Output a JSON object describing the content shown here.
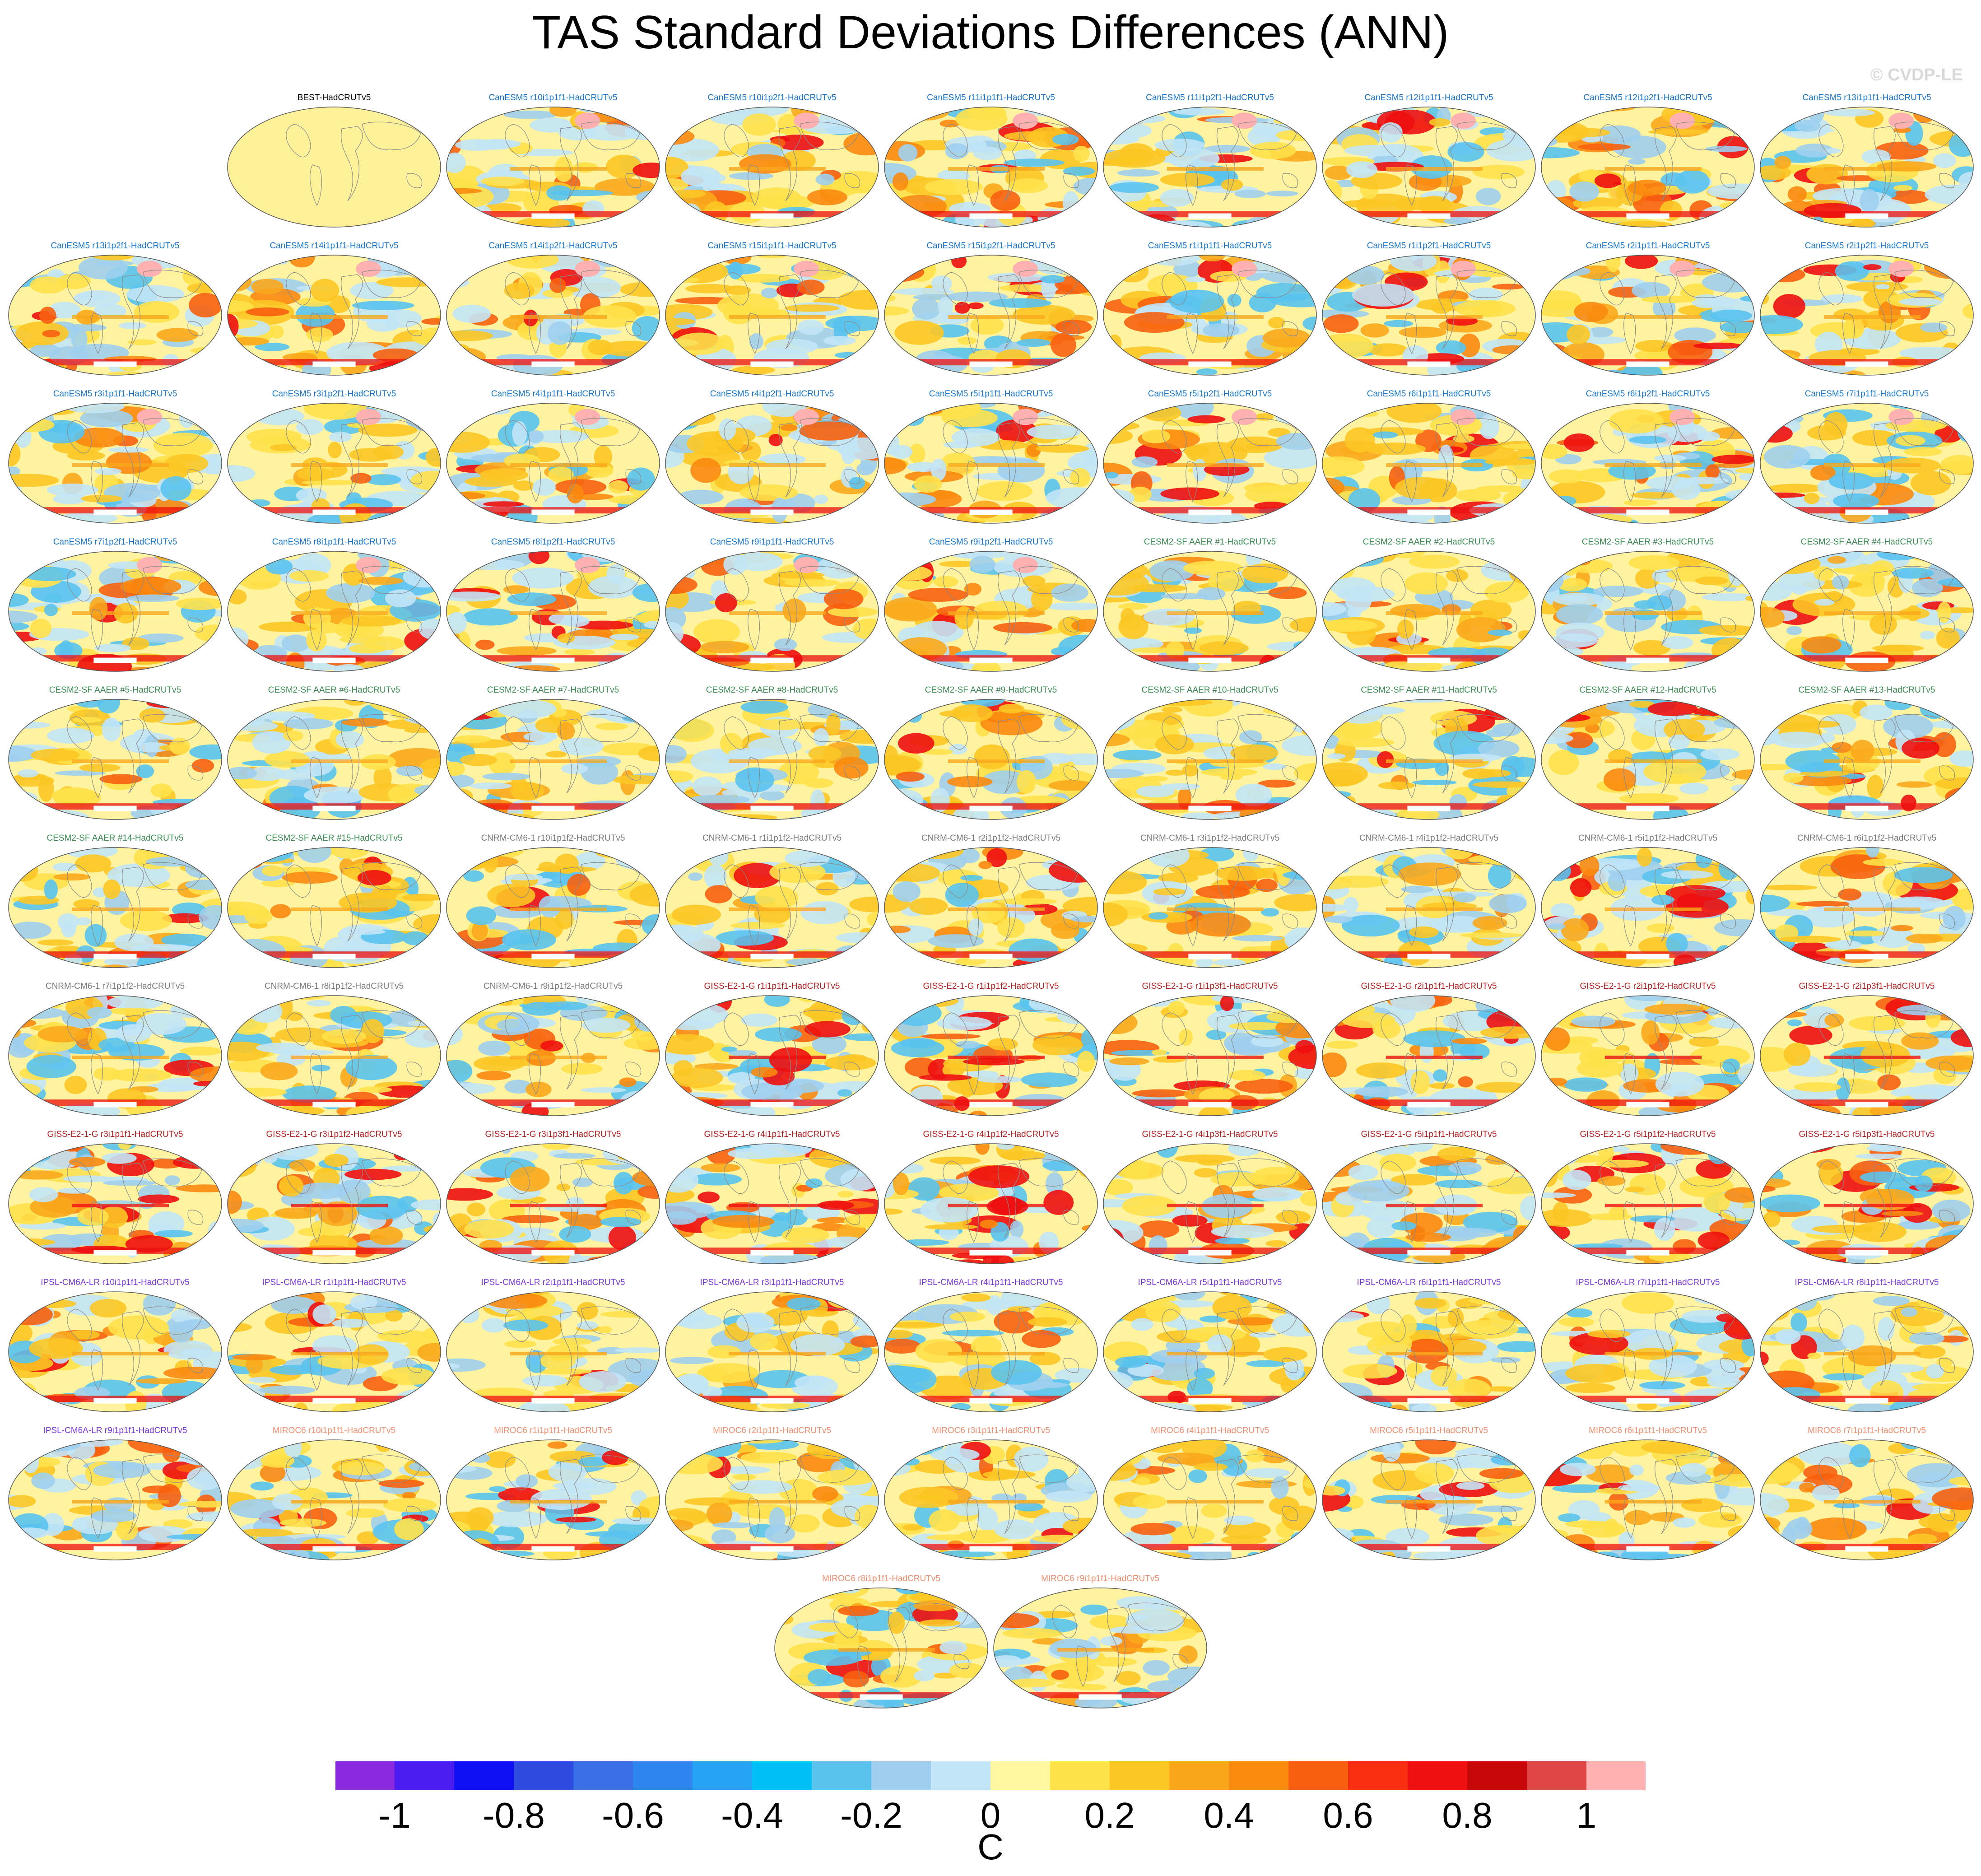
{
  "title": "TAS Standard Deviations Differences (ANN)",
  "watermark": "© CVDP-LE",
  "group_colors": {
    "BEST": "#000000",
    "CanESM5": "#1a75c9",
    "CESM2-SF AAER": "#3d8a54",
    "CNRM-CM6-1": "#7a7a7a",
    "GISS-E2-1-G": "#b02020",
    "IPSL-CM6A-LR": "#7a39d6",
    "MIROC6": "#f09070"
  },
  "panels": [
    {
      "label": "BEST-HadCRUTv5",
      "group": "BEST"
    },
    {
      "label": "CanESM5 r10i1p1f1-HadCRUTv5",
      "group": "CanESM5"
    },
    {
      "label": "CanESM5 r10i1p2f1-HadCRUTv5",
      "group": "CanESM5"
    },
    {
      "label": "CanESM5 r11i1p1f1-HadCRUTv5",
      "group": "CanESM5"
    },
    {
      "label": "CanESM5 r11i1p2f1-HadCRUTv5",
      "group": "CanESM5"
    },
    {
      "label": "CanESM5 r12i1p1f1-HadCRUTv5",
      "group": "CanESM5"
    },
    {
      "label": "CanESM5 r12i1p2f1-HadCRUTv5",
      "group": "CanESM5"
    },
    {
      "label": "CanESM5 r13i1p1f1-HadCRUTv5",
      "group": "CanESM5"
    },
    {
      "label": "CanESM5 r13i1p2f1-HadCRUTv5",
      "group": "CanESM5"
    },
    {
      "label": "CanESM5 r14i1p1f1-HadCRUTv5",
      "group": "CanESM5"
    },
    {
      "label": "CanESM5 r14i1p2f1-HadCRUTv5",
      "group": "CanESM5"
    },
    {
      "label": "CanESM5 r15i1p1f1-HadCRUTv5",
      "group": "CanESM5"
    },
    {
      "label": "CanESM5 r15i1p2f1-HadCRUTv5",
      "group": "CanESM5"
    },
    {
      "label": "CanESM5 r1i1p1f1-HadCRUTv5",
      "group": "CanESM5"
    },
    {
      "label": "CanESM5 r1i1p2f1-HadCRUTv5",
      "group": "CanESM5"
    },
    {
      "label": "CanESM5 r2i1p1f1-HadCRUTv5",
      "group": "CanESM5"
    },
    {
      "label": "CanESM5 r2i1p2f1-HadCRUTv5",
      "group": "CanESM5"
    },
    {
      "label": "CanESM5 r3i1p1f1-HadCRUTv5",
      "group": "CanESM5"
    },
    {
      "label": "CanESM5 r3i1p2f1-HadCRUTv5",
      "group": "CanESM5"
    },
    {
      "label": "CanESM5 r4i1p1f1-HadCRUTv5",
      "group": "CanESM5"
    },
    {
      "label": "CanESM5 r4i1p2f1-HadCRUTv5",
      "group": "CanESM5"
    },
    {
      "label": "CanESM5 r5i1p1f1-HadCRUTv5",
      "group": "CanESM5"
    },
    {
      "label": "CanESM5 r5i1p2f1-HadCRUTv5",
      "group": "CanESM5"
    },
    {
      "label": "CanESM5 r6i1p1f1-HadCRUTv5",
      "group": "CanESM5"
    },
    {
      "label": "CanESM5 r6i1p2f1-HadCRUTv5",
      "group": "CanESM5"
    },
    {
      "label": "CanESM5 r7i1p1f1-HadCRUTv5",
      "group": "CanESM5"
    },
    {
      "label": "CanESM5 r7i1p2f1-HadCRUTv5",
      "group": "CanESM5"
    },
    {
      "label": "CanESM5 r8i1p1f1-HadCRUTv5",
      "group": "CanESM5"
    },
    {
      "label": "CanESM5 r8i1p2f1-HadCRUTv5",
      "group": "CanESM5"
    },
    {
      "label": "CanESM5 r9i1p1f1-HadCRUTv5",
      "group": "CanESM5"
    },
    {
      "label": "CanESM5 r9i1p2f1-HadCRUTv5",
      "group": "CanESM5"
    },
    {
      "label": "CESM2-SF AAER #1-HadCRUTv5",
      "group": "CESM2-SF AAER"
    },
    {
      "label": "CESM2-SF AAER #2-HadCRUTv5",
      "group": "CESM2-SF AAER"
    },
    {
      "label": "CESM2-SF AAER #3-HadCRUTv5",
      "group": "CESM2-SF AAER"
    },
    {
      "label": "CESM2-SF AAER #4-HadCRUTv5",
      "group": "CESM2-SF AAER"
    },
    {
      "label": "CESM2-SF AAER #5-HadCRUTv5",
      "group": "CESM2-SF AAER"
    },
    {
      "label": "CESM2-SF AAER #6-HadCRUTv5",
      "group": "CESM2-SF AAER"
    },
    {
      "label": "CESM2-SF AAER #7-HadCRUTv5",
      "group": "CESM2-SF AAER"
    },
    {
      "label": "CESM2-SF AAER #8-HadCRUTv5",
      "group": "CESM2-SF AAER"
    },
    {
      "label": "CESM2-SF AAER #9-HadCRUTv5",
      "group": "CESM2-SF AAER"
    },
    {
      "label": "CESM2-SF AAER #10-HadCRUTv5",
      "group": "CESM2-SF AAER"
    },
    {
      "label": "CESM2-SF AAER #11-HadCRUTv5",
      "group": "CESM2-SF AAER"
    },
    {
      "label": "CESM2-SF AAER #12-HadCRUTv5",
      "group": "CESM2-SF AAER"
    },
    {
      "label": "CESM2-SF AAER #13-HadCRUTv5",
      "group": "CESM2-SF AAER"
    },
    {
      "label": "CESM2-SF AAER #14-HadCRUTv5",
      "group": "CESM2-SF AAER"
    },
    {
      "label": "CESM2-SF AAER #15-HadCRUTv5",
      "group": "CESM2-SF AAER"
    },
    {
      "label": "CNRM-CM6-1 r10i1p1f2-HadCRUTv5",
      "group": "CNRM-CM6-1"
    },
    {
      "label": "CNRM-CM6-1 r1i1p1f2-HadCRUTv5",
      "group": "CNRM-CM6-1"
    },
    {
      "label": "CNRM-CM6-1 r2i1p1f2-HadCRUTv5",
      "group": "CNRM-CM6-1"
    },
    {
      "label": "CNRM-CM6-1 r3i1p1f2-HadCRUTv5",
      "group": "CNRM-CM6-1"
    },
    {
      "label": "CNRM-CM6-1 r4i1p1f2-HadCRUTv5",
      "group": "CNRM-CM6-1"
    },
    {
      "label": "CNRM-CM6-1 r5i1p1f2-HadCRUTv5",
      "group": "CNRM-CM6-1"
    },
    {
      "label": "CNRM-CM6-1 r6i1p1f2-HadCRUTv5",
      "group": "CNRM-CM6-1"
    },
    {
      "label": "CNRM-CM6-1 r7i1p1f2-HadCRUTv5",
      "group": "CNRM-CM6-1"
    },
    {
      "label": "CNRM-CM6-1 r8i1p1f2-HadCRUTv5",
      "group": "CNRM-CM6-1"
    },
    {
      "label": "CNRM-CM6-1 r9i1p1f2-HadCRUTv5",
      "group": "CNRM-CM6-1"
    },
    {
      "label": "GISS-E2-1-G r1i1p1f1-HadCRUTv5",
      "group": "GISS-E2-1-G"
    },
    {
      "label": "GISS-E2-1-G r1i1p1f2-HadCRUTv5",
      "group": "GISS-E2-1-G"
    },
    {
      "label": "GISS-E2-1-G r1i1p3f1-HadCRUTv5",
      "group": "GISS-E2-1-G"
    },
    {
      "label": "GISS-E2-1-G r2i1p1f1-HadCRUTv5",
      "group": "GISS-E2-1-G"
    },
    {
      "label": "GISS-E2-1-G r2i1p1f2-HadCRUTv5",
      "group": "GISS-E2-1-G"
    },
    {
      "label": "GISS-E2-1-G r2i1p3f1-HadCRUTv5",
      "group": "GISS-E2-1-G"
    },
    {
      "label": "GISS-E2-1-G r3i1p1f1-HadCRUTv5",
      "group": "GISS-E2-1-G"
    },
    {
      "label": "GISS-E2-1-G r3i1p1f2-HadCRUTv5",
      "group": "GISS-E2-1-G"
    },
    {
      "label": "GISS-E2-1-G r3i1p3f1-HadCRUTv5",
      "group": "GISS-E2-1-G"
    },
    {
      "label": "GISS-E2-1-G r4i1p1f1-HadCRUTv5",
      "group": "GISS-E2-1-G"
    },
    {
      "label": "GISS-E2-1-G r4i1p1f2-HadCRUTv5",
      "group": "GISS-E2-1-G"
    },
    {
      "label": "GISS-E2-1-G r4i1p3f1-HadCRUTv5",
      "group": "GISS-E2-1-G"
    },
    {
      "label": "GISS-E2-1-G r5i1p1f1-HadCRUTv5",
      "group": "GISS-E2-1-G"
    },
    {
      "label": "GISS-E2-1-G r5i1p1f2-HadCRUTv5",
      "group": "GISS-E2-1-G"
    },
    {
      "label": "GISS-E2-1-G r5i1p3f1-HadCRUTv5",
      "group": "GISS-E2-1-G"
    },
    {
      "label": "IPSL-CM6A-LR r10i1p1f1-HadCRUTv5",
      "group": "IPSL-CM6A-LR"
    },
    {
      "label": "IPSL-CM6A-LR r1i1p1f1-HadCRUTv5",
      "group": "IPSL-CM6A-LR"
    },
    {
      "label": "IPSL-CM6A-LR r2i1p1f1-HadCRUTv5",
      "group": "IPSL-CM6A-LR"
    },
    {
      "label": "IPSL-CM6A-LR r3i1p1f1-HadCRUTv5",
      "group": "IPSL-CM6A-LR"
    },
    {
      "label": "IPSL-CM6A-LR r4i1p1f1-HadCRUTv5",
      "group": "IPSL-CM6A-LR"
    },
    {
      "label": "IPSL-CM6A-LR r5i1p1f1-HadCRUTv5",
      "group": "IPSL-CM6A-LR"
    },
    {
      "label": "IPSL-CM6A-LR r6i1p1f1-HadCRUTv5",
      "group": "IPSL-CM6A-LR"
    },
    {
      "label": "IPSL-CM6A-LR r7i1p1f1-HadCRUTv5",
      "group": "IPSL-CM6A-LR"
    },
    {
      "label": "IPSL-CM6A-LR r8i1p1f1-HadCRUTv5",
      "group": "IPSL-CM6A-LR"
    },
    {
      "label": "IPSL-CM6A-LR r9i1p1f1-HadCRUTv5",
      "group": "IPSL-CM6A-LR"
    },
    {
      "label": "MIROC6 r10i1p1f1-HadCRUTv5",
      "group": "MIROC6"
    },
    {
      "label": "MIROC6 r1i1p1f1-HadCRUTv5",
      "group": "MIROC6"
    },
    {
      "label": "MIROC6 r2i1p1f1-HadCRUTv5",
      "group": "MIROC6"
    },
    {
      "label": "MIROC6 r3i1p1f1-HadCRUTv5",
      "group": "MIROC6"
    },
    {
      "label": "MIROC6 r4i1p1f1-HadCRUTv5",
      "group": "MIROC6"
    },
    {
      "label": "MIROC6 r5i1p1f1-HadCRUTv5",
      "group": "MIROC6"
    },
    {
      "label": "MIROC6 r6i1p1f1-HadCRUTv5",
      "group": "MIROC6"
    },
    {
      "label": "MIROC6 r7i1p1f1-HadCRUTv5",
      "group": "MIROC6"
    },
    {
      "label": "MIROC6 r8i1p1f1-HadCRUTv5",
      "group": "MIROC6"
    },
    {
      "label": "MIROC6 r9i1p1f1-HadCRUTv5",
      "group": "MIROC6"
    }
  ],
  "colorbar": {
    "unit": "C",
    "min": -1.1,
    "max": 1.1,
    "step": 0.1,
    "colors": [
      "#8a2be2",
      "#4b1cf0",
      "#1010f5",
      "#2e4be0",
      "#3a6ee6",
      "#2f86f0",
      "#24a4f2",
      "#00c0f8",
      "#5ac3ee",
      "#9fcfee",
      "#c2e4f6",
      "#fff7a0",
      "#ffe14a",
      "#fcc624",
      "#f9a81c",
      "#f98a10",
      "#f7600e",
      "#f82e10",
      "#ee0f0f",
      "#c80808",
      "#de4646",
      "#ffb0b0"
    ],
    "tick_labels": [
      "-1",
      "-0.8",
      "-0.6",
      "-0.4",
      "-0.2",
      "0",
      "0.2",
      "0.4",
      "0.6",
      "0.8",
      "1"
    ],
    "tick_values": [
      -1,
      -0.8,
      -0.6,
      -0.4,
      -0.2,
      0,
      0.2,
      0.4,
      0.6,
      0.8,
      1
    ]
  }
}
